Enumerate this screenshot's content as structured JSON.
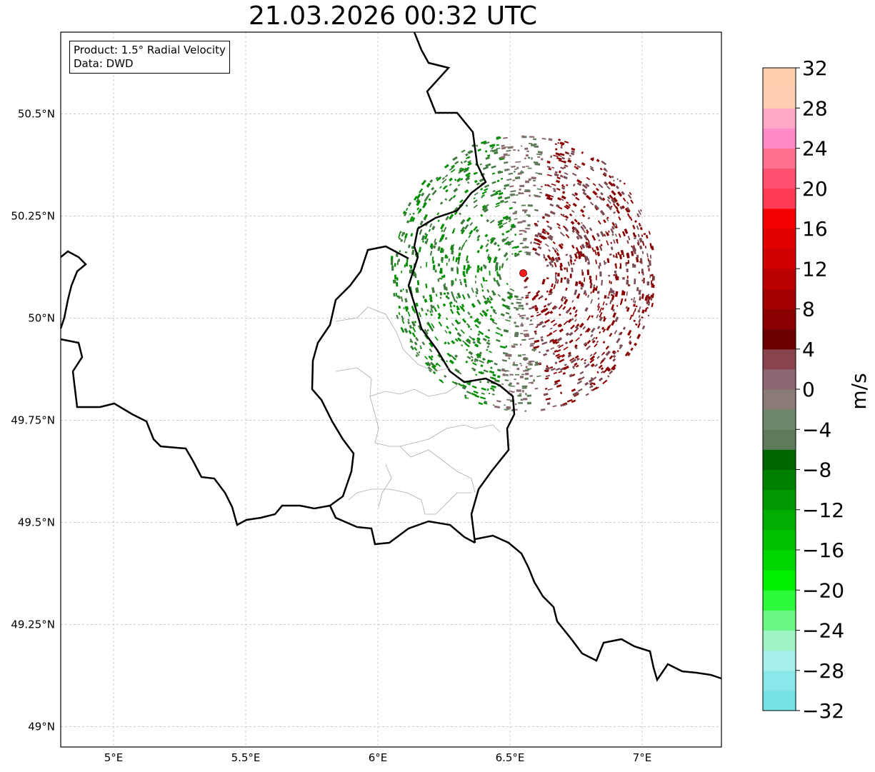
{
  "title": "21.03.2026 00:32 UTC",
  "info_box": {
    "product": "Product: 1.5° Radial Velocity",
    "data_source": "Data: DWD"
  },
  "map": {
    "extent": {
      "lon_min": 4.8,
      "lon_max": 7.3,
      "lat_min": 48.95,
      "lat_max": 50.7
    },
    "gridlines": true,
    "x_ticks": [
      {
        "lon": 5.0,
        "label": "5°E"
      },
      {
        "lon": 5.5,
        "label": "5.5°E"
      },
      {
        "lon": 6.0,
        "label": "6°E"
      },
      {
        "lon": 6.5,
        "label": "6.5°E"
      },
      {
        "lon": 7.0,
        "label": "7°E"
      }
    ],
    "y_ticks": [
      {
        "lat": 50.5,
        "label": "50.5°N"
      },
      {
        "lat": 50.25,
        "label": "50.25°N"
      },
      {
        "lat": 50.0,
        "label": "50°N"
      },
      {
        "lat": 49.75,
        "label": "49.75°N"
      },
      {
        "lat": 49.5,
        "label": "49.5°N"
      },
      {
        "lat": 49.25,
        "label": "49.25°N"
      },
      {
        "lat": 49.0,
        "label": "49°N"
      }
    ],
    "radar_site": {
      "lon": 6.55,
      "lat": 50.11,
      "color": "#ff1a1a"
    },
    "radar_range_km": 110
  },
  "colorbar": {
    "unit": "m/s",
    "min": -32,
    "max": 32,
    "ticks": [
      -32,
      -28,
      -24,
      -20,
      -16,
      -12,
      -8,
      -4,
      0,
      4,
      8,
      12,
      16,
      20,
      24,
      28,
      32
    ],
    "tick_labels": [
      "−32",
      "−28",
      "−24",
      "−20",
      "−16",
      "−12",
      "−8",
      "−4",
      "0",
      "4",
      "8",
      "12",
      "16",
      "20",
      "24",
      "28",
      "32"
    ],
    "colors": [
      "#75e3e6",
      "#8ae8ea",
      "#a8eeec",
      "#9ff4c6",
      "#6af784",
      "#2cfa3a",
      "#00f000",
      "#00d600",
      "#00c200",
      "#00ad00",
      "#009700",
      "#007f00",
      "#006500",
      "#5d7a59",
      "#6c8769",
      "#8a7a78",
      "#8c6670",
      "#88434c",
      "#6b0000",
      "#8a0000",
      "#a40000",
      "#bb0000",
      "#cf0000",
      "#e00000",
      "#f50000",
      "#ff3a54",
      "#ff5070",
      "#ff7090",
      "#ff8ac9",
      "#ffa9c7",
      "#ffcdb0",
      "#ffd0b0"
    ]
  }
}
